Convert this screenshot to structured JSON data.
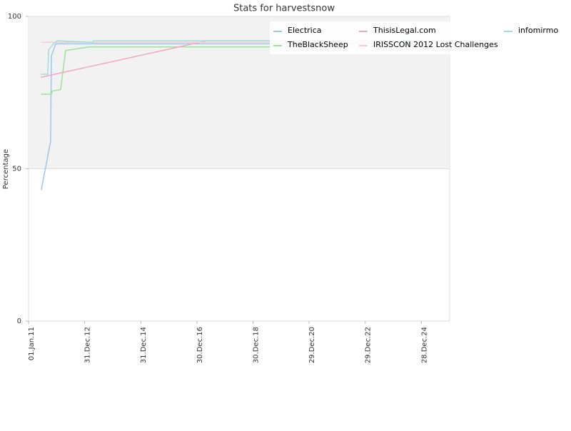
{
  "chart_data": {
    "type": "line",
    "title": "Stats for harvestsnow",
    "y_label": "Percentage",
    "xlim": [
      "2011-01-01",
      "2025-12-31"
    ],
    "xticks": [
      {
        "value": "2011-01-01",
        "label": "01.Jan.11"
      },
      {
        "value": "2012-12-31",
        "label": "31.Dec.12"
      },
      {
        "value": "2014-12-31",
        "label": "31.Dec.14"
      },
      {
        "value": "2016-12-30",
        "label": "30.Dec.16"
      },
      {
        "value": "2018-12-30",
        "label": "30.Dec.18"
      },
      {
        "value": "2020-12-29",
        "label": "29.Dec.20"
      },
      {
        "value": "2022-12-29",
        "label": "29.Dec.22"
      },
      {
        "value": "2024-12-28",
        "label": "28.Dec.24"
      }
    ],
    "ylim": [
      0,
      100
    ],
    "yticks": [
      0,
      50,
      100
    ],
    "grid": true,
    "legend": "top-right",
    "series": [
      {
        "name": "Electrica",
        "color": "#9cc6ea",
        "x": [
          "2011-06-15",
          "2011-10-15",
          "2011-10-25",
          "2011-12-20",
          "2025-03-01"
        ],
        "values": [
          43,
          59,
          87,
          91,
          91
        ]
      },
      {
        "name": "TheBlackSheep",
        "color": "#9ce49a",
        "x": [
          "2011-06-10",
          "2011-10-25",
          "2011-11-05",
          "2012-02-22",
          "2012-04-27",
          "2013-02-27",
          "2025-03-01"
        ],
        "values": [
          74.5,
          74.5,
          75.5,
          76,
          88.8,
          90,
          90
        ]
      },
      {
        "name": "ThisisLegal.com",
        "color": "#f2a6c6",
        "x": [
          "2011-06-08",
          "2017-05-08",
          "2025-03-01"
        ],
        "values": [
          80,
          92,
          92
        ]
      },
      {
        "name": "IRISSCON 2012 Lost Challenges",
        "color": "#f9ccd6",
        "x": [
          "2011-06-08",
          "2025-03-01"
        ],
        "values": [
          91.5,
          91.5
        ]
      },
      {
        "name": "infomirmo",
        "color": "#a2ded2",
        "x": [
          "2011-06-10",
          "2011-09-08",
          "2011-09-18",
          "2011-11-20",
          "2012-01-07",
          "2013-04-15",
          "2013-04-25",
          "2025-03-01"
        ],
        "values": [
          81,
          81,
          89,
          91,
          92,
          91.5,
          92,
          92
        ]
      }
    ]
  }
}
